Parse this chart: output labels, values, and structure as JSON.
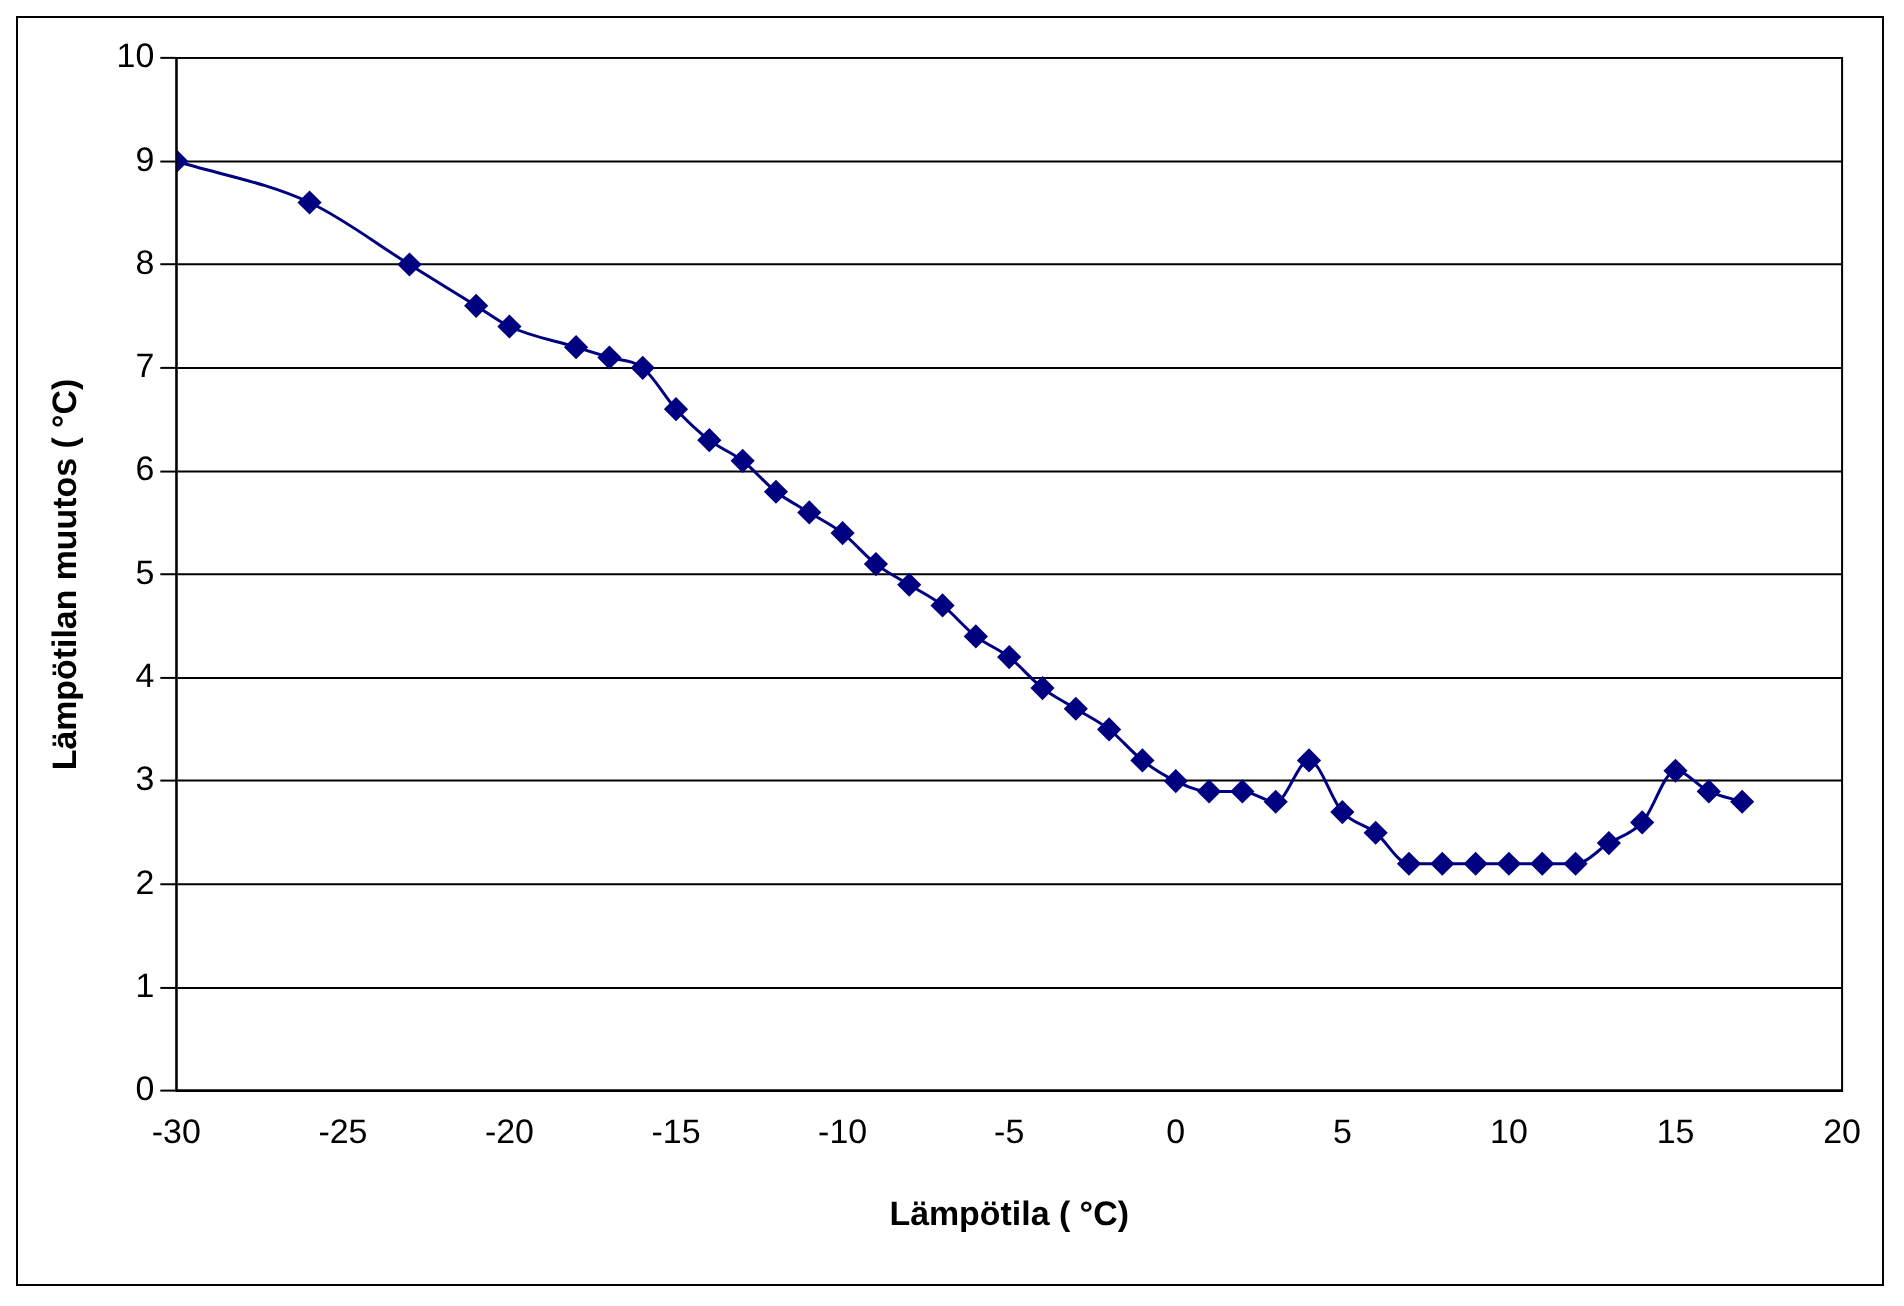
{
  "chart_data": {
    "type": "line",
    "xlabel": "Lämpötila ( °C)",
    "ylabel": "Lämpötilan muutos ( °C)",
    "x": [
      -30,
      -26,
      -23,
      -21,
      -20,
      -18,
      -17,
      -16,
      -15,
      -14,
      -13,
      -12,
      -11,
      -10,
      -9,
      -8,
      -7,
      -6,
      -5,
      -4,
      -3,
      -2,
      -1,
      0,
      1,
      2,
      3,
      4,
      5,
      6,
      7,
      8,
      9,
      10,
      11,
      12,
      13,
      14,
      15,
      16,
      17
    ],
    "series": [
      {
        "color": "#000080",
        "values": [
          9.0,
          8.6,
          8.0,
          7.6,
          7.4,
          7.2,
          7.1,
          7.0,
          6.6,
          6.3,
          6.1,
          5.8,
          5.6,
          5.4,
          5.1,
          4.9,
          4.7,
          4.4,
          4.2,
          3.9,
          3.7,
          3.5,
          3.2,
          3.0,
          2.9,
          2.9,
          2.8,
          3.2,
          2.7,
          2.5,
          2.2,
          2.2,
          2.2,
          2.2,
          2.2,
          2.2,
          2.4,
          2.6,
          3.1,
          2.9,
          2.8
        ]
      }
    ],
    "xlim": [
      -30,
      20
    ],
    "xticks": [
      -30,
      -25,
      -20,
      -15,
      -10,
      -5,
      0,
      5,
      10,
      15,
      20
    ],
    "ylim": [
      0,
      10
    ],
    "yticks": [
      0,
      1,
      2,
      3,
      4,
      5,
      6,
      7,
      8,
      9,
      10
    ],
    "grid": "y",
    "legend": false,
    "marker": "diamond",
    "line_style": "solid"
  }
}
